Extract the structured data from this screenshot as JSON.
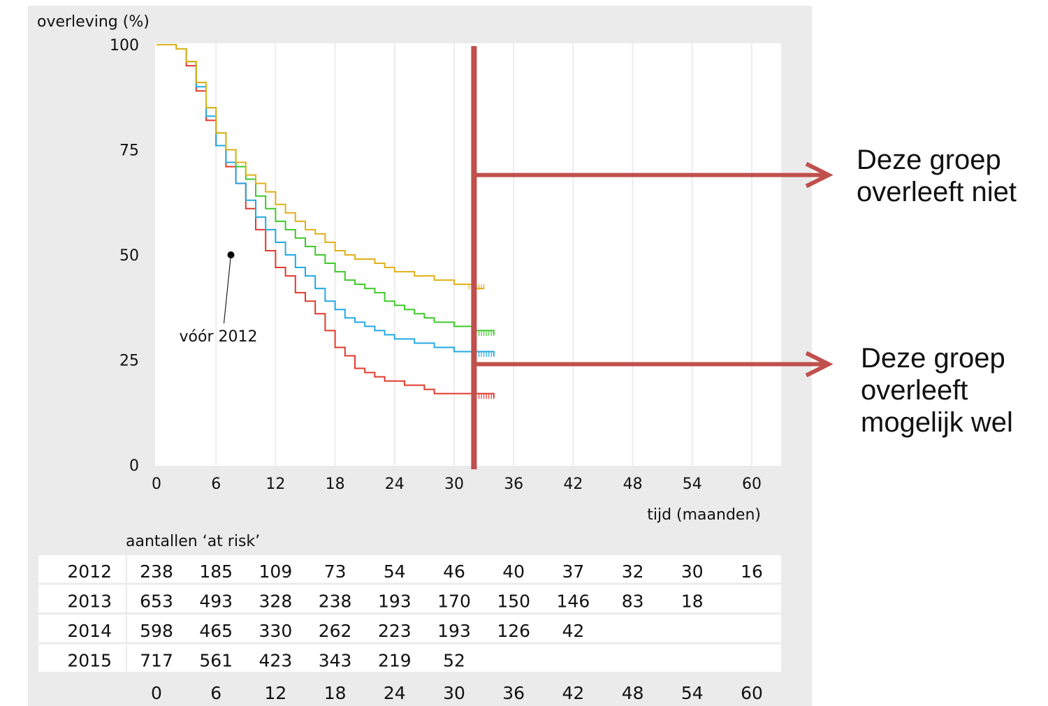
{
  "chart_data": {
    "type": "line",
    "ylabel": "overleving (%)",
    "xlabel": "tijd (maanden)",
    "xlim": [
      0,
      63
    ],
    "ylim": [
      0,
      100
    ],
    "x_ticks": [
      0,
      6,
      12,
      18,
      24,
      30,
      36,
      42,
      48,
      54,
      60
    ],
    "y_ticks": [
      0,
      25,
      50,
      75,
      100
    ],
    "grid": "vertical",
    "series": [
      {
        "color": "#e03a2e",
        "points": [
          [
            0,
            100
          ],
          [
            2,
            99
          ],
          [
            3,
            95
          ],
          [
            4,
            89
          ],
          [
            5,
            82
          ],
          [
            6,
            76
          ],
          [
            7,
            71
          ],
          [
            8,
            67
          ],
          [
            9,
            61
          ],
          [
            10,
            56
          ],
          [
            11,
            51
          ],
          [
            12,
            47
          ],
          [
            13,
            45
          ],
          [
            14,
            41
          ],
          [
            15,
            39
          ],
          [
            16,
            36
          ],
          [
            17,
            32
          ],
          [
            18,
            28
          ],
          [
            19,
            26
          ],
          [
            20,
            23
          ],
          [
            21,
            22
          ],
          [
            22,
            21
          ],
          [
            23,
            20
          ],
          [
            24,
            20
          ],
          [
            25,
            19
          ],
          [
            27,
            18
          ],
          [
            28,
            17
          ],
          [
            30,
            17
          ],
          [
            31,
            17
          ],
          [
            34,
            16
          ]
        ]
      },
      {
        "color": "#22a9e3",
        "points": [
          [
            0,
            100
          ],
          [
            1,
            100
          ],
          [
            2,
            99
          ],
          [
            3,
            96
          ],
          [
            4,
            90
          ],
          [
            5,
            83
          ],
          [
            6,
            76
          ],
          [
            7,
            72
          ],
          [
            8,
            67
          ],
          [
            9,
            63
          ],
          [
            10,
            59
          ],
          [
            11,
            56
          ],
          [
            12,
            53
          ],
          [
            13,
            50
          ],
          [
            14,
            47
          ],
          [
            15,
            45
          ],
          [
            16,
            42
          ],
          [
            17,
            39
          ],
          [
            18,
            37
          ],
          [
            19,
            35
          ],
          [
            20,
            34
          ],
          [
            21,
            33
          ],
          [
            22,
            32
          ],
          [
            23,
            31
          ],
          [
            24,
            30
          ],
          [
            26,
            29
          ],
          [
            28,
            28
          ],
          [
            30,
            27
          ],
          [
            32,
            27
          ],
          [
            34,
            26
          ]
        ]
      },
      {
        "color": "#3fc92a",
        "points": [
          [
            0,
            100
          ],
          [
            1,
            100
          ],
          [
            2,
            99
          ],
          [
            3,
            96
          ],
          [
            4,
            91
          ],
          [
            5,
            85
          ],
          [
            6,
            79
          ],
          [
            7,
            75
          ],
          [
            8,
            71
          ],
          [
            9,
            68
          ],
          [
            10,
            64
          ],
          [
            11,
            61
          ],
          [
            12,
            58
          ],
          [
            13,
            56
          ],
          [
            14,
            54
          ],
          [
            15,
            52
          ],
          [
            16,
            50
          ],
          [
            17,
            48
          ],
          [
            18,
            46
          ],
          [
            19,
            44
          ],
          [
            20,
            43
          ],
          [
            21,
            42
          ],
          [
            22,
            41
          ],
          [
            23,
            39
          ],
          [
            24,
            38
          ],
          [
            25,
            37
          ],
          [
            26,
            36
          ],
          [
            27,
            35
          ],
          [
            28,
            34
          ],
          [
            30,
            33
          ],
          [
            32,
            32
          ],
          [
            34,
            31
          ]
        ]
      },
      {
        "color": "#e1b018",
        "points": [
          [
            0,
            100
          ],
          [
            1,
            100
          ],
          [
            2,
            99
          ],
          [
            3,
            96
          ],
          [
            4,
            91
          ],
          [
            5,
            85
          ],
          [
            6,
            79
          ],
          [
            7,
            75
          ],
          [
            8,
            72
          ],
          [
            9,
            69
          ],
          [
            10,
            67
          ],
          [
            11,
            65
          ],
          [
            12,
            62
          ],
          [
            13,
            60
          ],
          [
            14,
            58
          ],
          [
            15,
            56
          ],
          [
            16,
            55
          ],
          [
            17,
            53
          ],
          [
            18,
            51
          ],
          [
            19,
            50
          ],
          [
            20,
            49
          ],
          [
            21,
            49
          ],
          [
            22,
            48
          ],
          [
            23,
            47
          ],
          [
            24,
            46
          ],
          [
            26,
            45
          ],
          [
            28,
            44
          ],
          [
            30,
            43
          ],
          [
            32,
            42
          ],
          [
            33,
            42
          ]
        ]
      }
    ],
    "annotation": {
      "text": "vóór 2012",
      "x": 7.5,
      "y": 50
    },
    "at_risk": {
      "title": "aantallen ‘at risk’",
      "rows": [
        {
          "label": "2012",
          "values": [
            "238",
            "185",
            "109",
            "73",
            "54",
            "46",
            "40",
            "37",
            "32",
            "30",
            "16"
          ]
        },
        {
          "label": "2013",
          "values": [
            "653",
            "493",
            "328",
            "238",
            "193",
            "170",
            "150",
            "146",
            "83",
            "18",
            ""
          ]
        },
        {
          "label": "2014",
          "values": [
            "598",
            "465",
            "330",
            "262",
            "223",
            "193",
            "126",
            "42",
            "",
            "",
            ""
          ]
        },
        {
          "label": "2015",
          "values": [
            "717",
            "561",
            "423",
            "343",
            "219",
            "52",
            "",
            "",
            "",
            "",
            ""
          ]
        }
      ],
      "footer": [
        "0",
        "6",
        "12",
        "18",
        "24",
        "30",
        "36",
        "42",
        "48",
        "54",
        "60"
      ]
    }
  },
  "overlay": {
    "cutoff_month": 32,
    "line_color": "#c0504d",
    "arrow_upper_level": 69,
    "arrow_lower_level": 24,
    "upper_label": "Deze groep\noverleeft niet",
    "lower_label": "Deze groep\noverleeft\nmogelijk wel"
  }
}
